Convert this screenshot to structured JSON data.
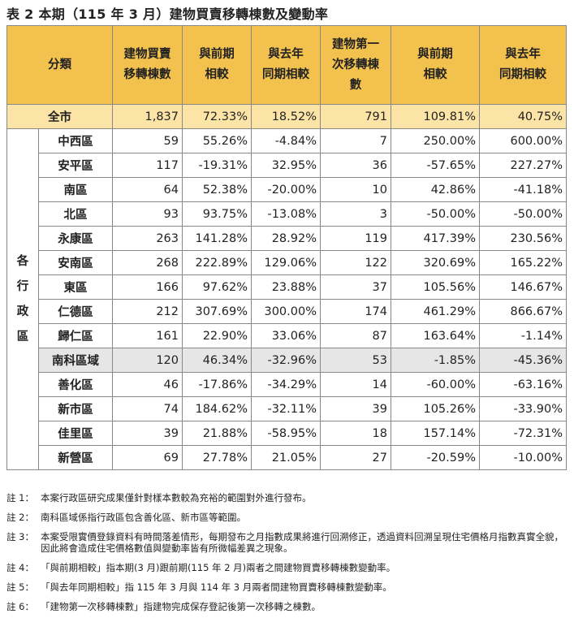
{
  "title": "表 2 本期（115 年 3 月）建物買賣移轉棟數及變動率",
  "header": {
    "category": "分類",
    "col1": [
      "建物買賣",
      "移轉棟數"
    ],
    "col2": [
      "與前期",
      "相較"
    ],
    "col3": [
      "與去年",
      "同期相較"
    ],
    "col4": [
      "建物第一",
      "次移轉棟",
      "數"
    ],
    "col5": [
      "與前期",
      "相較"
    ],
    "col6": [
      "與去年",
      "同期相較"
    ]
  },
  "total": {
    "label": "全市",
    "values": [
      "1,837",
      "72.33%",
      "18.52%",
      "791",
      "109.81%",
      "40.75%"
    ]
  },
  "side_label": [
    "各",
    "行",
    "政",
    "區"
  ],
  "rows": [
    {
      "name": "中西區",
      "values": [
        "59",
        "55.26%",
        "-4.84%",
        "7",
        "250.00%",
        "600.00%"
      ]
    },
    {
      "name": "安平區",
      "values": [
        "117",
        "-19.31%",
        "32.95%",
        "36",
        "-57.65%",
        "227.27%"
      ]
    },
    {
      "name": "南區",
      "values": [
        "64",
        "52.38%",
        "-20.00%",
        "10",
        "42.86%",
        "-41.18%"
      ]
    },
    {
      "name": "北區",
      "values": [
        "93",
        "93.75%",
        "-13.08%",
        "3",
        "-50.00%",
        "-50.00%"
      ]
    },
    {
      "name": "永康區",
      "values": [
        "263",
        "141.28%",
        "28.92%",
        "119",
        "417.39%",
        "230.56%"
      ]
    },
    {
      "name": "安南區",
      "values": [
        "268",
        "222.89%",
        "129.06%",
        "122",
        "320.69%",
        "165.22%"
      ]
    },
    {
      "name": "東區",
      "values": [
        "166",
        "97.62%",
        "23.88%",
        "37",
        "105.56%",
        "146.67%"
      ]
    },
    {
      "name": "仁德區",
      "values": [
        "212",
        "307.69%",
        "300.00%",
        "174",
        "461.29%",
        "866.67%"
      ]
    },
    {
      "name": "歸仁區",
      "values": [
        "161",
        "22.90%",
        "33.06%",
        "87",
        "163.64%",
        "-1.14%"
      ]
    },
    {
      "name": "南科區域",
      "values": [
        "120",
        "46.34%",
        "-32.96%",
        "53",
        "-1.85%",
        "-45.36%"
      ]
    },
    {
      "name": "善化區",
      "values": [
        "46",
        "-17.86%",
        "-34.29%",
        "14",
        "-60.00%",
        "-63.16%"
      ]
    },
    {
      "name": "新市區",
      "values": [
        "74",
        "184.62%",
        "-32.11%",
        "39",
        "105.26%",
        "-33.90%"
      ]
    },
    {
      "name": "佳里區",
      "values": [
        "39",
        "21.88%",
        "-58.95%",
        "18",
        "157.14%",
        "-72.31%"
      ]
    },
    {
      "name": "新營區",
      "values": [
        "69",
        "27.78%",
        "21.05%",
        "27",
        "-20.59%",
        "-10.00%"
      ]
    }
  ],
  "colors": {
    "header_bg": "#f2c14e",
    "total_bg": "#fce4a6",
    "highlight_bg": "#e6e6e6"
  },
  "notes": [
    {
      "key": "註 1：",
      "text": "本案行政區研究成果僅針對樣本數較為充裕的範圍對外進行發布。"
    },
    {
      "key": "註 2：",
      "text": "南科區域係指行政區包含善化區、新市區等範圍。"
    },
    {
      "key": "註 3：",
      "text": "本案受限實價登錄資料有時間落差情形，每期發布之月指數成果將進行回溯修正，透過資料回溯呈現住宅價格月指數真實全貌，因此將會造成住宅價格數值與變動率皆有所微幅差異之現象。"
    },
    {
      "key": "註 4：",
      "text": "「與前期相較」指本期(3 月)跟前期(115 年 2 月)兩者之間建物買賣移轉棟數變動率。"
    },
    {
      "key": "註 5：",
      "text": "「與去年同期相較」指 115 年 3 月與 114 年 3 月兩者間建物買賣移轉棟數變動率。"
    },
    {
      "key": "註 6：",
      "text": "「建物第一次移轉棟數」指建物完成保存登記後第一次移轉之棟數。"
    }
  ]
}
